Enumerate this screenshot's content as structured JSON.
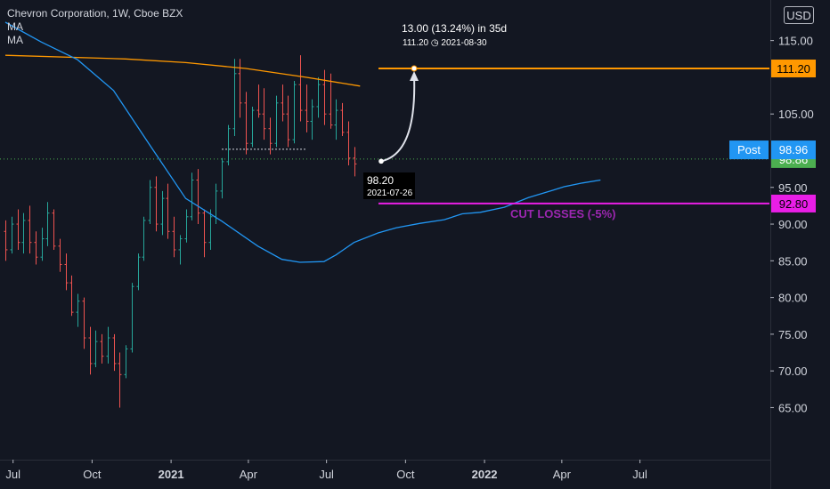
{
  "legend": {
    "symbol": "Chevron Corporation, 1W, Cboe BZX",
    "ma1": "MA",
    "ma2": "MA"
  },
  "currency": "USD",
  "colors": {
    "background": "#131722",
    "up": "#26a69a",
    "down": "#ef5350",
    "ma_long": "#ff9800",
    "ma_short": "#2196f3",
    "target": "#ff9800",
    "stop": "#e91ee6",
    "last_price": "#4caf50",
    "post": "#2196f3"
  },
  "chart_data": {
    "type": "ohlc",
    "x_start": "2020-06-22",
    "y_ticks": [
      65,
      70,
      75,
      80,
      85,
      90,
      95,
      105,
      115
    ],
    "y_tick_labels": [
      "65.00",
      "70.00",
      "75.00",
      "80.00",
      "85.00",
      "90.00",
      "95.00",
      "105.00",
      "115.00"
    ],
    "ylim": [
      59.0,
      117.5
    ],
    "x_ticks": [
      {
        "label": "Jul",
        "date": "2020-07-01",
        "bold": false
      },
      {
        "label": "Oct",
        "date": "2020-10-01",
        "bold": false
      },
      {
        "label": "2021",
        "date": "2021-01-01",
        "bold": true
      },
      {
        "label": "Apr",
        "date": "2021-04-01",
        "bold": false
      },
      {
        "label": "Jul",
        "date": "2021-07-01",
        "bold": false
      },
      {
        "label": "Oct",
        "date": "2021-10-01",
        "bold": false
      },
      {
        "label": "2022",
        "date": "2022-01-01",
        "bold": true
      },
      {
        "label": "Apr",
        "date": "2022-04-01",
        "bold": false
      },
      {
        "label": "Jul",
        "date": "2022-07-01",
        "bold": false
      }
    ],
    "ohlc": [
      [
        89.0,
        90.5,
        85.0,
        86.5
      ],
      [
        86.5,
        91.0,
        86.0,
        90.0
      ],
      [
        90.0,
        92.0,
        86.5,
        87.5
      ],
      [
        87.5,
        91.5,
        86.0,
        90.5
      ],
      [
        90.5,
        92.5,
        86.0,
        87.5
      ],
      [
        87.5,
        89.0,
        84.5,
        85.5
      ],
      [
        85.5,
        89.5,
        85.0,
        88.0
      ],
      [
        88.0,
        93.0,
        87.0,
        91.5
      ],
      [
        91.5,
        92.0,
        86.5,
        87.0
      ],
      [
        87.0,
        88.0,
        83.5,
        84.5
      ],
      [
        84.5,
        86.0,
        81.0,
        82.0
      ],
      [
        82.0,
        83.0,
        77.5,
        78.0
      ],
      [
        78.0,
        80.5,
        76.0,
        79.5
      ],
      [
        79.5,
        80.0,
        73.0,
        74.5
      ],
      [
        74.5,
        76.0,
        69.5,
        71.0
      ],
      [
        71.0,
        75.5,
        70.5,
        74.0
      ],
      [
        74.0,
        75.0,
        71.0,
        72.0
      ],
      [
        72.0,
        76.0,
        71.0,
        74.5
      ],
      [
        74.5,
        75.0,
        70.0,
        71.0
      ],
      [
        71.0,
        72.5,
        65.0,
        69.5
      ],
      [
        69.5,
        73.5,
        69.0,
        73.0
      ],
      [
        73.0,
        82.0,
        72.5,
        81.5
      ],
      [
        81.5,
        86.0,
        81.0,
        85.5
      ],
      [
        85.5,
        91.0,
        85.0,
        90.5
      ],
      [
        90.5,
        96.0,
        90.0,
        95.0
      ],
      [
        95.0,
        96.5,
        89.0,
        90.0
      ],
      [
        90.0,
        94.5,
        88.5,
        93.5
      ],
      [
        93.5,
        95.5,
        88.0,
        89.0
      ],
      [
        89.0,
        91.0,
        85.5,
        86.5
      ],
      [
        86.5,
        88.5,
        84.5,
        88.0
      ],
      [
        88.0,
        92.0,
        87.5,
        91.0
      ],
      [
        91.0,
        97.0,
        90.5,
        96.0
      ],
      [
        96.0,
        97.5,
        90.0,
        91.5
      ],
      [
        91.5,
        92.0,
        85.5,
        87.5
      ],
      [
        87.5,
        92.0,
        86.5,
        91.0
      ],
      [
        91.0,
        95.5,
        90.0,
        94.5
      ],
      [
        94.5,
        99.0,
        93.5,
        98.5
      ],
      [
        98.5,
        103.5,
        98.0,
        103.0
      ],
      [
        103.0,
        112.5,
        102.0,
        110.5
      ],
      [
        110.5,
        112.5,
        104.5,
        106.5
      ],
      [
        106.5,
        108.0,
        99.5,
        101.0
      ],
      [
        101.0,
        106.0,
        100.5,
        105.5
      ],
      [
        105.5,
        109.0,
        104.5,
        105.0
      ],
      [
        105.0,
        108.5,
        101.5,
        103.0
      ],
      [
        103.0,
        104.5,
        99.5,
        101.0
      ],
      [
        101.0,
        107.5,
        100.5,
        106.5
      ],
      [
        106.5,
        109.0,
        104.0,
        105.0
      ],
      [
        105.0,
        107.5,
        100.5,
        101.5
      ],
      [
        101.5,
        109.5,
        101.0,
        109.0
      ],
      [
        109.0,
        113.0,
        104.0,
        105.5
      ],
      [
        105.5,
        109.0,
        102.5,
        104.0
      ],
      [
        104.0,
        107.0,
        101.5,
        106.0
      ],
      [
        106.0,
        110.0,
        104.5,
        109.0
      ],
      [
        109.0,
        111.0,
        103.5,
        105.0
      ],
      [
        105.0,
        110.5,
        103.0,
        103.5
      ],
      [
        103.5,
        107.0,
        101.5,
        105.5
      ],
      [
        105.5,
        106.5,
        102.0,
        102.5
      ],
      [
        102.5,
        104.0,
        98.0,
        99.0
      ],
      [
        99.0,
        100.5,
        96.5,
        98.2
      ]
    ],
    "series": [
      {
        "values": [
          [
            0,
            113.0
          ],
          [
            20,
            112.5
          ],
          [
            30,
            112.0
          ],
          [
            40,
            111.2
          ],
          [
            50,
            110.0
          ],
          [
            59,
            108.8
          ]
        ]
      },
      {
        "values": [
          [
            0,
            117.5
          ],
          [
            6,
            114.8
          ],
          [
            12,
            112.4
          ],
          [
            18,
            108.2
          ],
          [
            24,
            100.8
          ],
          [
            30,
            93.5
          ],
          [
            36,
            90.4
          ],
          [
            42,
            87.0
          ],
          [
            46,
            85.2
          ],
          [
            49,
            84.8
          ],
          [
            53,
            84.9
          ],
          [
            55,
            85.8
          ],
          [
            58,
            87.5
          ],
          [
            62,
            88.8
          ],
          [
            65,
            89.5
          ],
          [
            69,
            90.1
          ],
          [
            73,
            90.6
          ],
          [
            76,
            91.4
          ],
          [
            79,
            91.6
          ],
          [
            83,
            92.3
          ],
          [
            87,
            93.6
          ],
          [
            91,
            94.6
          ],
          [
            93,
            95.1
          ],
          [
            96,
            95.6
          ],
          [
            99,
            96.0
          ]
        ]
      }
    ],
    "levels": {
      "target": {
        "value": 111.2,
        "label": "111.20"
      },
      "stop": {
        "value": 92.8,
        "label": "92.80"
      },
      "last": {
        "value": 98.86,
        "label": "98.86"
      },
      "post": {
        "value": 98.96,
        "label": "98.96",
        "tag": "Post"
      }
    },
    "annotations": {
      "projection_text": "13.00 (13.24%) in 35d",
      "projection_sub": "111.20 ◷ 2021-08-30",
      "entry_text": "98.20",
      "entry_date": "2021-07-26",
      "cut_losses": "CUT LOSSES (-5%)"
    }
  }
}
